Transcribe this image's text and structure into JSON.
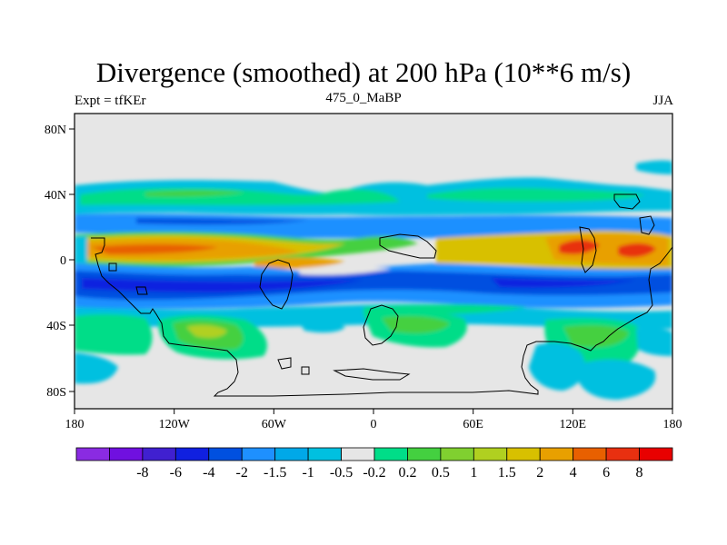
{
  "title": "Divergence (smoothed) at 200 hPa (10**6 m/s)",
  "left_label": "Expt = tfKEr",
  "center_label": "475_0_MaBP",
  "right_label": "JJA",
  "map": {
    "lon_range": [
      -180,
      180
    ],
    "lat_range": [
      -90,
      90
    ],
    "lon_ticks": [
      "180",
      "120W",
      "60W",
      "0",
      "60E",
      "120E",
      "180"
    ],
    "lat_ticks": [
      "80N",
      "40N",
      "0",
      "40S",
      "80S"
    ],
    "background_color": "#e6e6e6"
  },
  "colorbar": {
    "colors": [
      "#8a2be2",
      "#7010e0",
      "#4020d0",
      "#1020e0",
      "#0050e0",
      "#1e90ff",
      "#00a8e8",
      "#00c0e0",
      "#e6e6e6",
      "#00dd88",
      "#44d040",
      "#80d030",
      "#b0d020",
      "#d8c000",
      "#e8a000",
      "#e86000",
      "#e83010",
      "#e80000"
    ],
    "labels": [
      "-8",
      "-6",
      "-4",
      "-2",
      "-1.5",
      "-1",
      "-0.5",
      "-0.2",
      "0.2",
      "0.5",
      "1",
      "1.5",
      "2",
      "4",
      "6",
      "8"
    ]
  }
}
